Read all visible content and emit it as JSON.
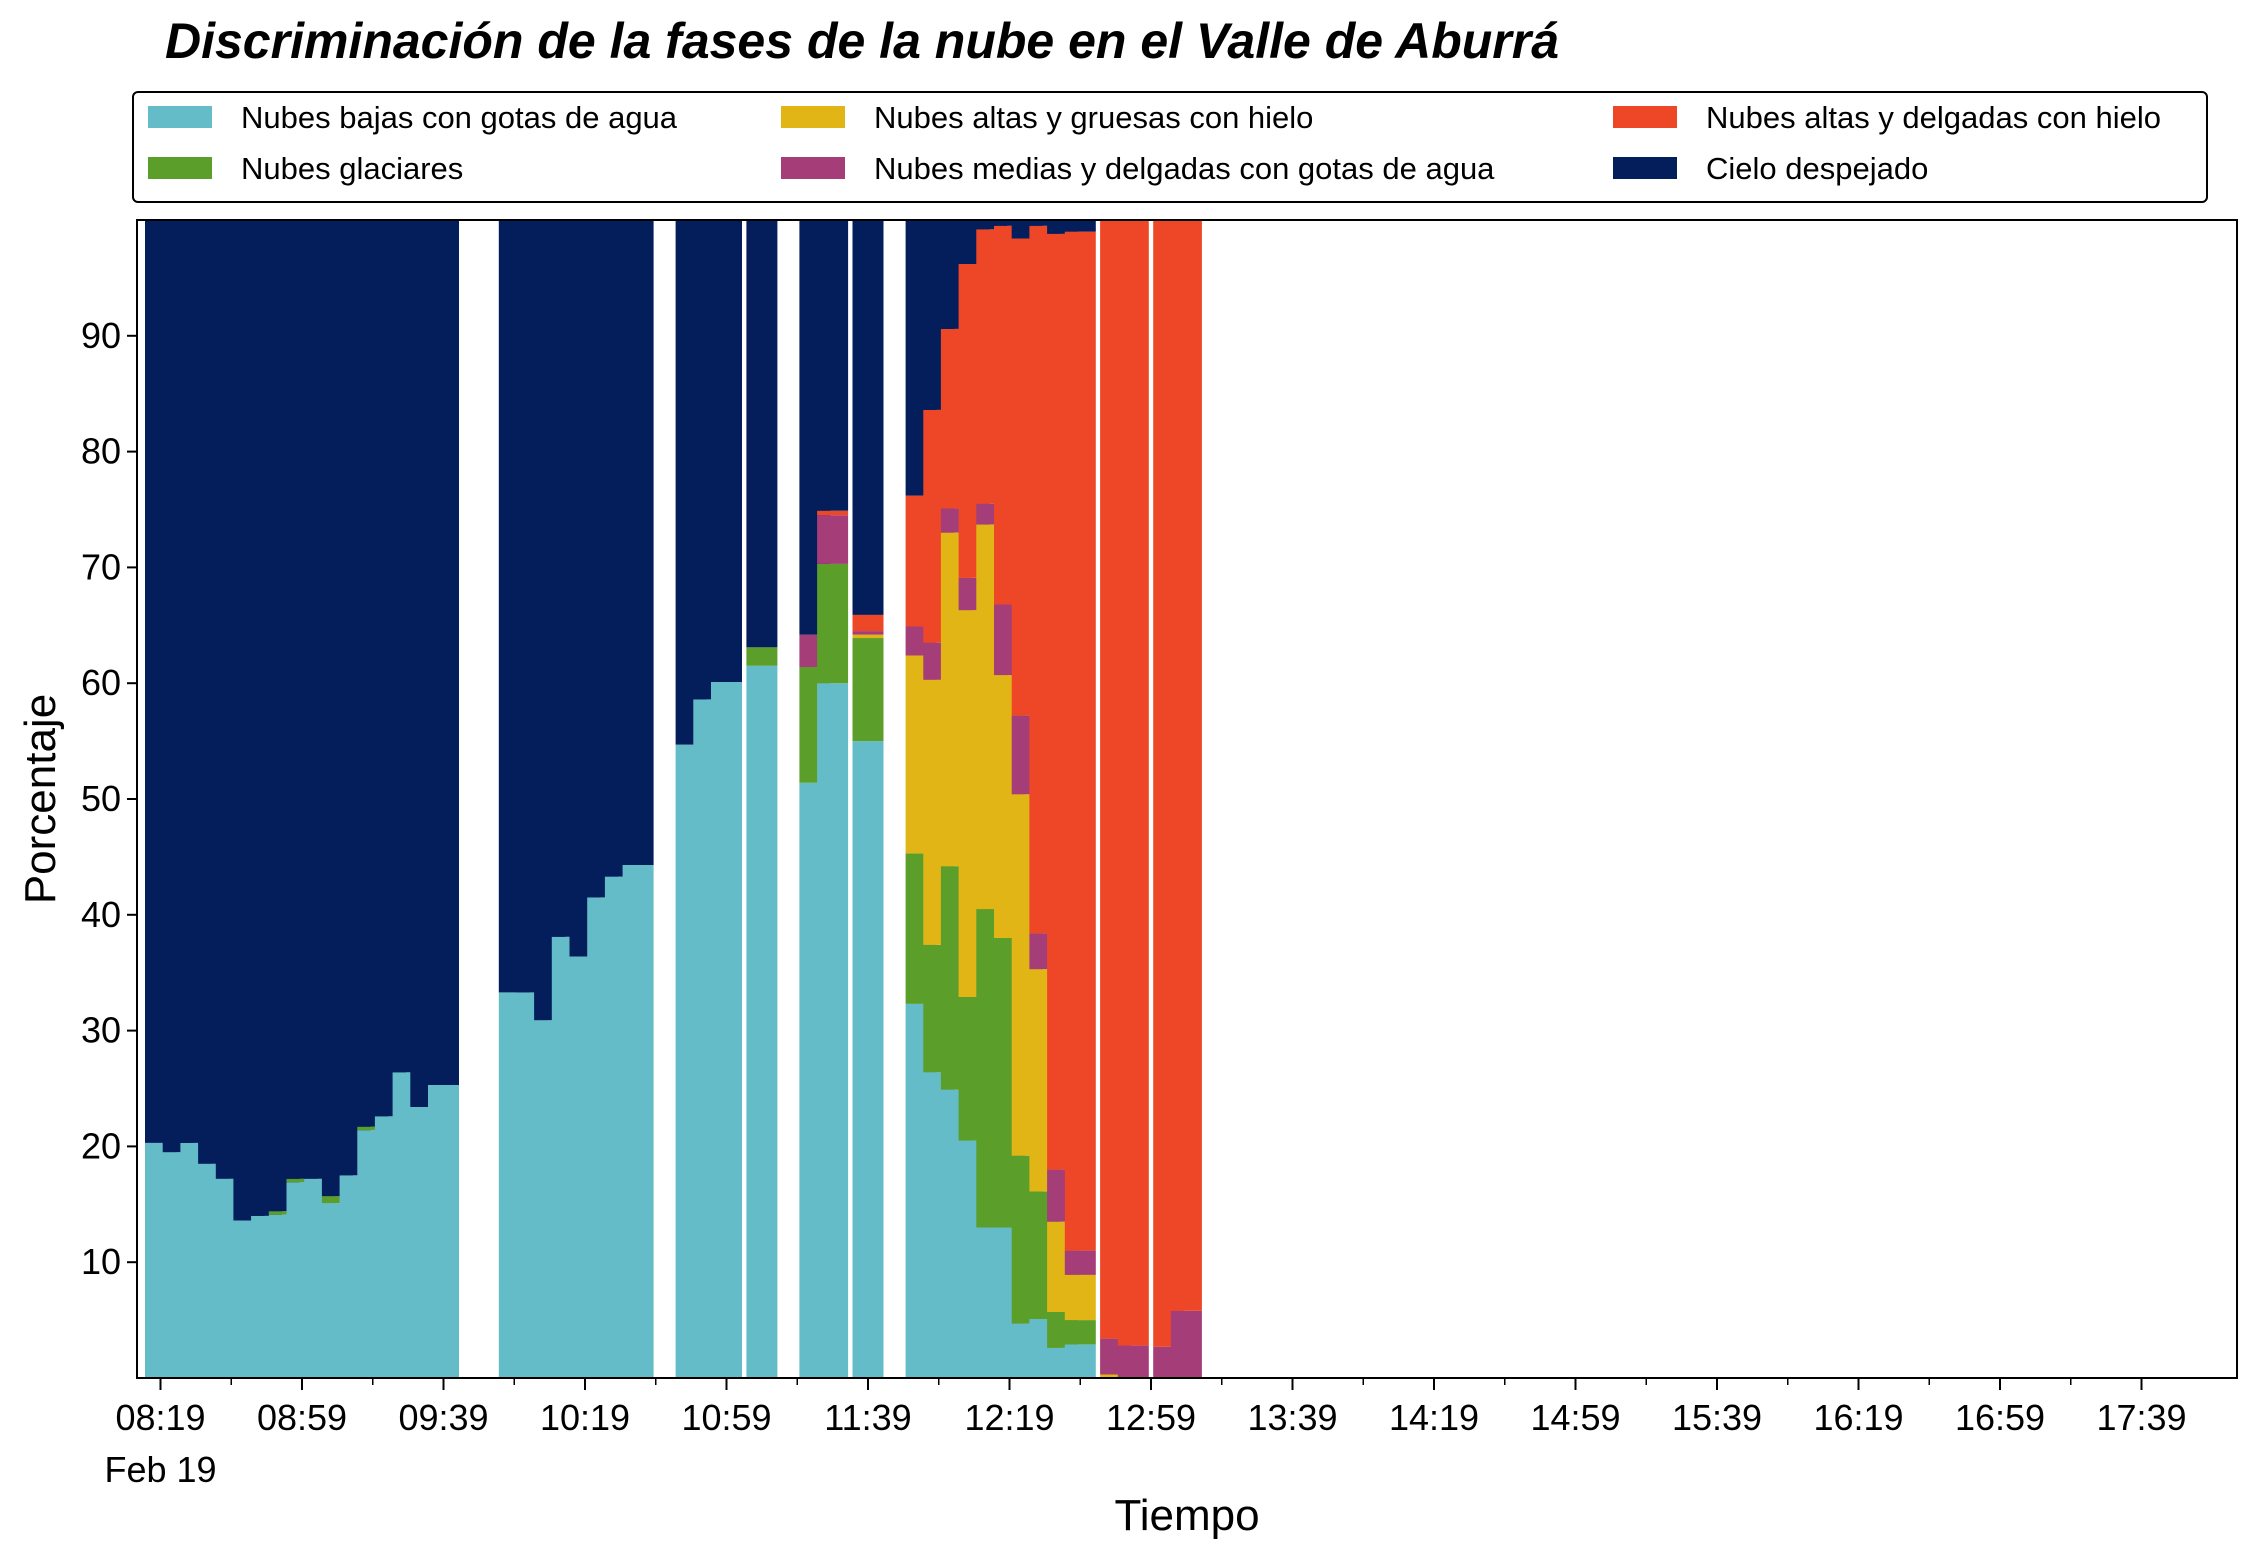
{
  "chart_data": {
    "type": "bar",
    "stacked": true,
    "title": "Discriminación de la fases de la nube en el Valle de Aburrá",
    "xlabel": "Tiempo",
    "ylabel": "Porcentaje",
    "ylim": [
      0,
      100
    ],
    "yticks": [
      10,
      20,
      30,
      40,
      50,
      60,
      70,
      80,
      90
    ],
    "xtick_labels": [
      "08:19",
      "08:59",
      "09:39",
      "10:19",
      "10:59",
      "11:39",
      "12:19",
      "12:59",
      "13:39",
      "14:19",
      "14:59",
      "15:39",
      "16:19",
      "16:59",
      "17:39"
    ],
    "xtick_sublabel": "Feb 19",
    "legend_position": "top",
    "legend_columns": 3,
    "grid": false,
    "series": [
      {
        "name": "Nubes bajas con gotas de agua",
        "color": "#65bcc9"
      },
      {
        "name": "Nubes glaciares",
        "color": "#5c9e2a"
      },
      {
        "name": "Nubes altas y gruesas con hielo",
        "color": "#e2b517"
      },
      {
        "name": "Nubes medias y delgadas con gotas de agua",
        "color": "#a43d78"
      },
      {
        "name": "Nubes altas y delgadas con hielo",
        "color": "#ee4728"
      },
      {
        "name": "Cielo despejado",
        "color": "#041e5c"
      }
    ],
    "legend_order": [
      0,
      2,
      4,
      1,
      3,
      5
    ],
    "bars": [
      {
        "time": "08:19",
        "values": [
          20.3,
          0,
          0,
          0,
          0,
          79.7
        ]
      },
      {
        "time": "08:24",
        "values": [
          19.5,
          0,
          0,
          0,
          0,
          80.5
        ]
      },
      {
        "time": "08:29",
        "values": [
          20.3,
          0,
          0,
          0,
          0,
          79.7
        ]
      },
      {
        "time": "08:34",
        "values": [
          18.5,
          0,
          0,
          0,
          0,
          81.5
        ]
      },
      {
        "time": "08:39",
        "values": [
          17.2,
          0,
          0,
          0,
          0,
          82.8
        ]
      },
      {
        "time": "08:44",
        "values": [
          13.6,
          0,
          0,
          0,
          0,
          86.4
        ]
      },
      {
        "time": "08:49",
        "values": [
          14.0,
          0,
          0,
          0,
          0,
          86.0
        ]
      },
      {
        "time": "08:54",
        "values": [
          14.1,
          0.3,
          0,
          0,
          0,
          85.6
        ]
      },
      {
        "time": "08:59",
        "values": [
          16.9,
          0.3,
          0,
          0,
          0,
          82.8
        ]
      },
      {
        "time": "09:04",
        "values": [
          17.2,
          0,
          0,
          0,
          0,
          82.8
        ]
      },
      {
        "time": "09:09",
        "values": [
          15.1,
          0.6,
          0,
          0,
          0,
          84.3
        ]
      },
      {
        "time": "09:14",
        "values": [
          17.5,
          0,
          0,
          0,
          0,
          82.5
        ]
      },
      {
        "time": "09:19",
        "values": [
          21.4,
          0.3,
          0,
          0,
          0,
          78.3
        ]
      },
      {
        "time": "09:24",
        "values": [
          22.6,
          0,
          0,
          0,
          0,
          77.4
        ]
      },
      {
        "time": "09:29",
        "values": [
          26.4,
          0,
          0,
          0,
          0,
          73.6
        ]
      },
      {
        "time": "09:34",
        "values": [
          23.4,
          0,
          0,
          0,
          0,
          76.6
        ]
      },
      {
        "time": "09:39",
        "values": [
          25.3,
          0,
          0,
          0,
          0,
          74.7
        ]
      },
      {
        "time": "09:59",
        "values": [
          33.3,
          0,
          0,
          0,
          0,
          66.7
        ]
      },
      {
        "time": "10:04",
        "values": [
          33.3,
          0,
          0,
          0,
          0,
          66.7
        ]
      },
      {
        "time": "10:09",
        "values": [
          30.9,
          0,
          0,
          0,
          0,
          69.1
        ]
      },
      {
        "time": "10:14",
        "values": [
          38.1,
          0,
          0,
          0,
          0,
          61.9
        ]
      },
      {
        "time": "10:19",
        "values": [
          36.4,
          0,
          0,
          0,
          0,
          63.6
        ]
      },
      {
        "time": "10:24",
        "values": [
          41.5,
          0,
          0,
          0,
          0,
          58.5
        ]
      },
      {
        "time": "10:29",
        "values": [
          43.3,
          0,
          0,
          0,
          0,
          56.7
        ]
      },
      {
        "time": "10:34",
        "values": [
          44.3,
          0,
          0,
          0,
          0,
          55.7
        ]
      },
      {
        "time": "10:49",
        "values": [
          54.7,
          0,
          0,
          0,
          0,
          45.3
        ]
      },
      {
        "time": "10:54",
        "values": [
          58.6,
          0,
          0,
          0,
          0,
          41.4
        ]
      },
      {
        "time": "10:59",
        "values": [
          60.1,
          0,
          0,
          0,
          0,
          39.9
        ]
      },
      {
        "time": "11:09",
        "values": [
          61.5,
          1.6,
          0,
          0,
          0,
          36.9
        ]
      },
      {
        "time": "11:24",
        "values": [
          51.4,
          10.0,
          0,
          2.8,
          0,
          35.8
        ]
      },
      {
        "time": "11:29",
        "values": [
          60.0,
          10.3,
          0,
          4.2,
          0.4,
          25.1
        ]
      },
      {
        "time": "11:39",
        "values": [
          55.0,
          8.9,
          0.3,
          0.3,
          1.4,
          34.1
        ]
      },
      {
        "time": "11:54",
        "values": [
          32.3,
          13.0,
          17.1,
          2.5,
          11.3,
          23.8
        ]
      },
      {
        "time": "11:59",
        "values": [
          26.4,
          11.0,
          22.9,
          3.2,
          20.1,
          16.4
        ]
      },
      {
        "time": "12:04",
        "values": [
          24.9,
          19.3,
          28.8,
          2.1,
          15.5,
          9.4
        ]
      },
      {
        "time": "12:09",
        "values": [
          20.5,
          12.4,
          33.4,
          2.8,
          27.1,
          3.8
        ]
      },
      {
        "time": "12:14",
        "values": [
          13.0,
          27.5,
          33.2,
          1.8,
          23.7,
          0.8
        ]
      },
      {
        "time": "12:19",
        "values": [
          13.0,
          25.0,
          22.7,
          6.1,
          32.7,
          0.5
        ]
      },
      {
        "time": "12:24",
        "values": [
          4.7,
          14.5,
          31.2,
          6.8,
          41.2,
          1.6
        ]
      },
      {
        "time": "12:29",
        "values": [
          5.1,
          11.0,
          19.2,
          3.1,
          61.1,
          0.5
        ]
      },
      {
        "time": "12:34",
        "values": [
          2.6,
          3.1,
          7.8,
          4.5,
          80.8,
          1.2
        ]
      },
      {
        "time": "12:39",
        "values": [
          2.9,
          2.1,
          3.9,
          2.1,
          88.0,
          1.0
        ]
      },
      {
        "time": "12:49",
        "values": [
          0,
          0,
          0.3,
          3.1,
          96.6,
          0
        ]
      },
      {
        "time": "12:54",
        "values": [
          0,
          0,
          0,
          2.8,
          97.2,
          0
        ]
      },
      {
        "time": "13:04",
        "values": [
          0,
          0,
          0,
          2.7,
          97.3,
          0
        ]
      },
      {
        "time": "13:09",
        "values": [
          0,
          0,
          0,
          5.8,
          94.2,
          0
        ]
      }
    ]
  }
}
